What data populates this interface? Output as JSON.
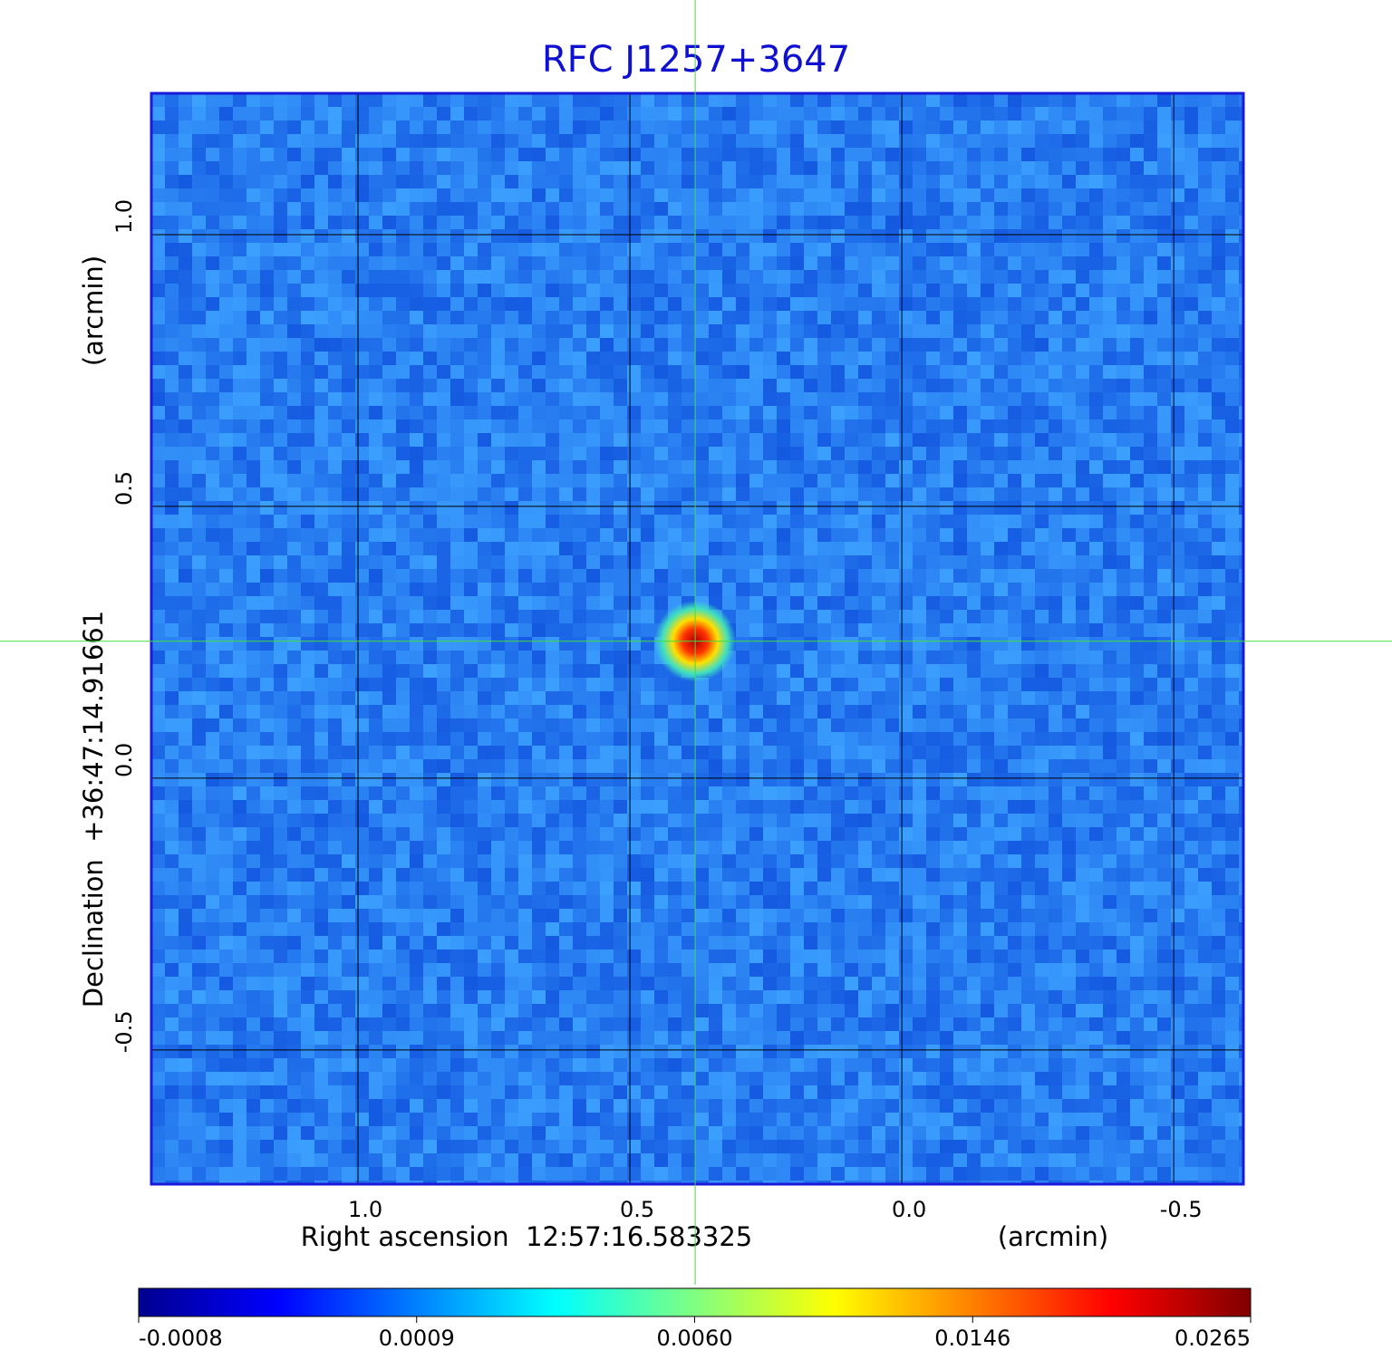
{
  "chart_data": {
    "type": "image",
    "title": "RFC J1257+3647",
    "xlabel": "Right ascension  12:57:16.583325",
    "xunit": "(arcmin)",
    "ylabel": "Declination  +36:47:14.91661",
    "yunit": "(arcmin)",
    "xlim": [
      1.38,
      -0.628
    ],
    "ylim": [
      -0.747,
      1.26
    ],
    "xticks": [
      {
        "value": 1,
        "label": "1.0"
      },
      0.5,
      {
        "value": 0,
        "label": "0.0"
      },
      -0.5
    ],
    "yticks": [
      {
        "value": 1,
        "label": "1.0"
      },
      0.5,
      {
        "value": 0,
        "label": "0.0"
      },
      -0.5
    ],
    "grid": true,
    "crosshair": {
      "x": 0.38,
      "y": 0.252
    },
    "colormap": [
      "#00008f",
      "#0000ff",
      "#0080ff",
      "#00ffff",
      "#80ff80",
      "#ffff00",
      "#ff8000",
      "#ff0000",
      "#800000"
    ],
    "colorbar_ticks": [
      {
        "value": -0.0008,
        "label": "-0.0008"
      },
      {
        "value": 0.0009,
        "label": "0.0009"
      },
      {
        "value": 0.006,
        "label": "0.0060"
      },
      {
        "value": 0.0146,
        "label": "0.0146"
      },
      {
        "value": 0.0265,
        "label": "0.0265"
      }
    ]
  }
}
